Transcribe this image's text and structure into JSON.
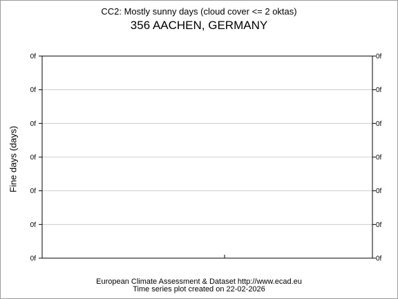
{
  "chart_data": {
    "type": "line",
    "title": "CC2: Mostly sunny days (cloud cover <= 2 oktas)",
    "subtitle": "356 AACHEN, GERMANY",
    "ylabel": "Fine days (days)",
    "xlabel": "",
    "y_tick_labels": [
      "0f",
      "0f",
      "0f",
      "0f",
      "0f",
      "0f",
      "0f"
    ],
    "x_tick_labels": [],
    "series": [],
    "grid": true,
    "colors": {
      "grid": "#cccccc",
      "axis": "#000000",
      "frame": "#9a9a9a"
    }
  },
  "footer": {
    "line1": "European Climate Assessment & Dataset  http://www.ecad.eu",
    "line2": "Time series plot created on 22-02-2026"
  }
}
